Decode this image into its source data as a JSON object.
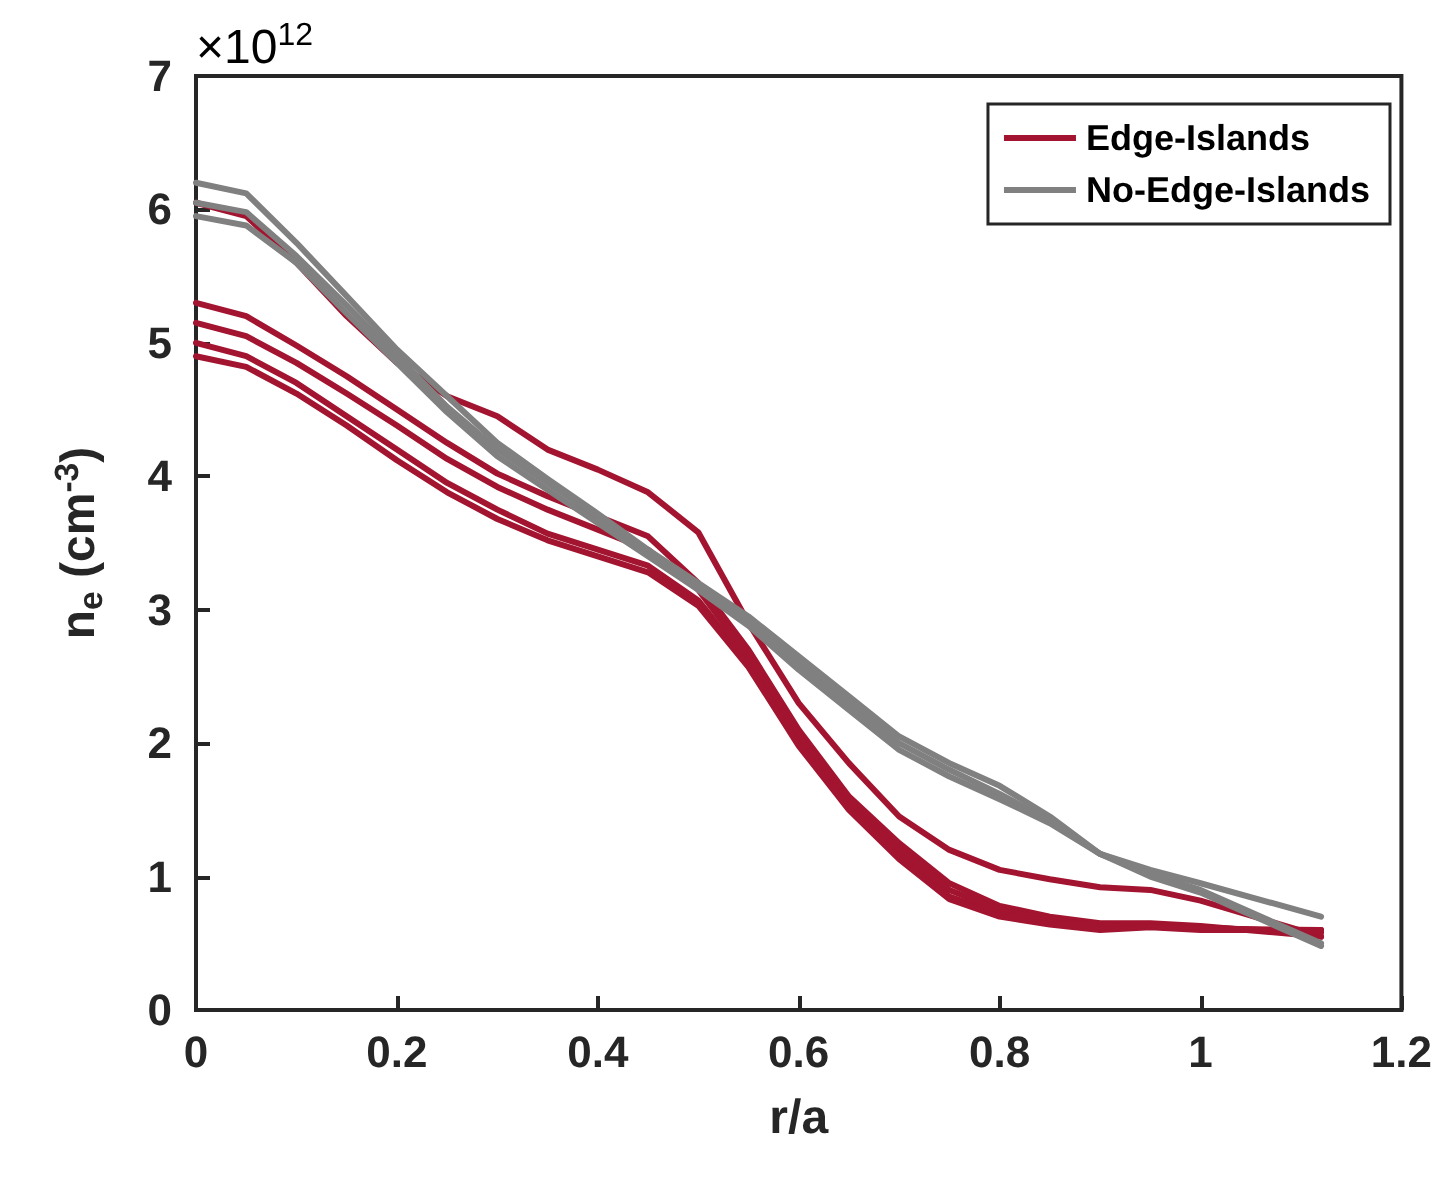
{
  "chart_data": {
    "type": "line",
    "xlabel": "r/a",
    "ylabel": "n$_{e}$ (cm$^{-3}$)",
    "annotations": [
      "×10$^{12}$"
    ],
    "x": [
      0,
      0.05,
      0.1,
      0.15,
      0.2,
      0.25,
      0.3,
      0.35,
      0.4,
      0.45,
      0.5,
      0.55,
      0.6,
      0.65,
      0.7,
      0.75,
      0.8,
      0.85,
      0.9,
      0.95,
      1.0,
      1.12
    ],
    "xlim": [
      0,
      1.2
    ],
    "xticks": [
      0,
      0.2,
      0.4,
      0.6,
      0.8,
      1,
      1.2
    ],
    "ylim": [
      0,
      7
    ],
    "yticks": [
      0,
      1,
      2,
      3,
      4,
      5,
      6,
      7
    ],
    "grid": false,
    "legend": "top right",
    "marker": "none",
    "line_style": "solid",
    "series": [
      {
        "name": "Edge-Islands",
        "color": "#a2142f",
        "values": [
          6.05,
          5.95,
          5.6,
          5.2,
          4.85,
          4.6,
          4.45,
          4.2,
          4.05,
          3.88,
          3.58,
          2.9,
          2.3,
          1.85,
          1.45,
          1.2,
          1.05,
          0.98,
          0.92,
          0.9,
          0.82,
          0.55
        ]
      },
      {
        "color": "#a2142f",
        "values": [
          5.3,
          5.2,
          4.98,
          4.75,
          4.5,
          4.25,
          4.02,
          3.85,
          3.7,
          3.55,
          3.2,
          2.7,
          2.1,
          1.6,
          1.25,
          0.95,
          0.78,
          0.7,
          0.65,
          0.65,
          0.63,
          0.55
        ]
      },
      {
        "color": "#a2142f",
        "values": [
          5.15,
          5.05,
          4.85,
          4.62,
          4.38,
          4.13,
          3.92,
          3.75,
          3.6,
          3.45,
          3.15,
          2.65,
          2.05,
          1.55,
          1.2,
          0.9,
          0.75,
          0.68,
          0.63,
          0.64,
          0.62,
          0.58
        ]
      },
      {
        "color": "#a2142f",
        "values": [
          5.0,
          4.9,
          4.7,
          4.45,
          4.2,
          3.95,
          3.75,
          3.57,
          3.45,
          3.33,
          3.07,
          2.6,
          2.0,
          1.52,
          1.15,
          0.85,
          0.72,
          0.66,
          0.62,
          0.63,
          0.61,
          0.6
        ]
      },
      {
        "color": "#a2142f",
        "values": [
          4.9,
          4.82,
          4.62,
          4.38,
          4.12,
          3.88,
          3.68,
          3.52,
          3.4,
          3.28,
          3.03,
          2.57,
          1.98,
          1.5,
          1.13,
          0.83,
          0.7,
          0.64,
          0.6,
          0.62,
          0.6,
          0.6
        ]
      },
      {
        "name": "No-Edge-Islands",
        "color": "#808080",
        "values": [
          6.2,
          6.12,
          5.75,
          5.35,
          4.95,
          4.6,
          4.25,
          3.98,
          3.72,
          3.45,
          3.2,
          2.95,
          2.65,
          2.35,
          2.05,
          1.85,
          1.68,
          1.45,
          1.17,
          1.05,
          0.95,
          0.7
        ]
      },
      {
        "color": "#808080",
        "values": [
          6.05,
          5.98,
          5.65,
          5.28,
          4.9,
          4.52,
          4.2,
          3.95,
          3.7,
          3.43,
          3.18,
          2.92,
          2.6,
          2.3,
          2.0,
          1.8,
          1.62,
          1.42,
          1.17,
          1.02,
          0.9,
          0.5
        ]
      },
      {
        "color": "#808080",
        "values": [
          5.95,
          5.88,
          5.6,
          5.22,
          4.85,
          4.48,
          4.15,
          3.9,
          3.65,
          3.4,
          3.15,
          2.88,
          2.55,
          2.25,
          1.95,
          1.75,
          1.58,
          1.4,
          1.17,
          1.0,
          0.88,
          0.48
        ]
      }
    ]
  }
}
